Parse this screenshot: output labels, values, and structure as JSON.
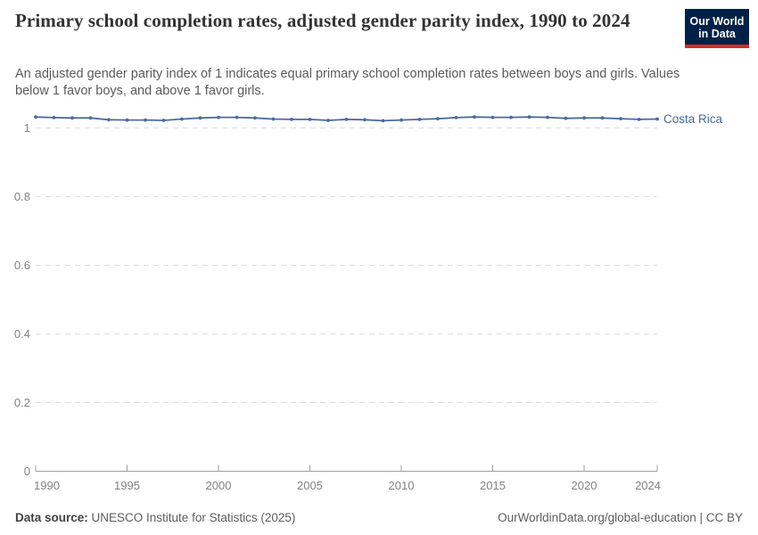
{
  "header": {
    "title": "Primary school completion rates, adjusted gender parity index, 1990 to 2024",
    "subtitle": "An adjusted gender parity index of 1 indicates equal primary school completion rates between boys and girls. Values below 1 favor boys, and above 1 favor girls.",
    "logo": {
      "line1": "Our World",
      "line2": "in Data",
      "bg_color": "#002147",
      "accent_color": "#dc2a20"
    }
  },
  "chart_data": {
    "type": "line",
    "title": "Primary school completion rates, adjusted gender parity index, 1990 to 2024",
    "xlabel": "",
    "ylabel": "",
    "x": [
      1990,
      1991,
      1992,
      1993,
      1994,
      1995,
      1996,
      1997,
      1998,
      1999,
      2000,
      2001,
      2002,
      2003,
      2004,
      2005,
      2006,
      2007,
      2008,
      2009,
      2010,
      2011,
      2012,
      2013,
      2014,
      2015,
      2016,
      2017,
      2018,
      2019,
      2020,
      2021,
      2022,
      2023,
      2024
    ],
    "series": [
      {
        "name": "Costa Rica",
        "color": "#4c6a9c",
        "values": [
          1.032,
          1.03,
          1.029,
          1.029,
          1.024,
          1.023,
          1.023,
          1.022,
          1.026,
          1.029,
          1.031,
          1.031,
          1.029,
          1.026,
          1.025,
          1.025,
          1.022,
          1.025,
          1.024,
          1.021,
          1.023,
          1.025,
          1.027,
          1.03,
          1.032,
          1.031,
          1.031,
          1.032,
          1.031,
          1.028,
          1.029,
          1.029,
          1.027,
          1.025,
          1.026
        ]
      }
    ],
    "x_ticks": [
      1990,
      1995,
      2000,
      2005,
      2010,
      2015,
      2020,
      2024
    ],
    "y_ticks": [
      0,
      0.2,
      0.4,
      0.6,
      0.8,
      1
    ],
    "ylim": [
      0,
      1.05
    ],
    "xlim": [
      1990,
      2024
    ],
    "grid": "horizontal-dashed",
    "legend": "line-end-label",
    "colors": {
      "grid": "#dedede",
      "axis": "#9e9e9e",
      "tick_label": "#838383"
    }
  },
  "footer": {
    "source_label": "Data source:",
    "source_text": " UNESCO Institute for Statistics (2025)",
    "link_text": "OurWorldinData.org/global-education | CC BY"
  }
}
